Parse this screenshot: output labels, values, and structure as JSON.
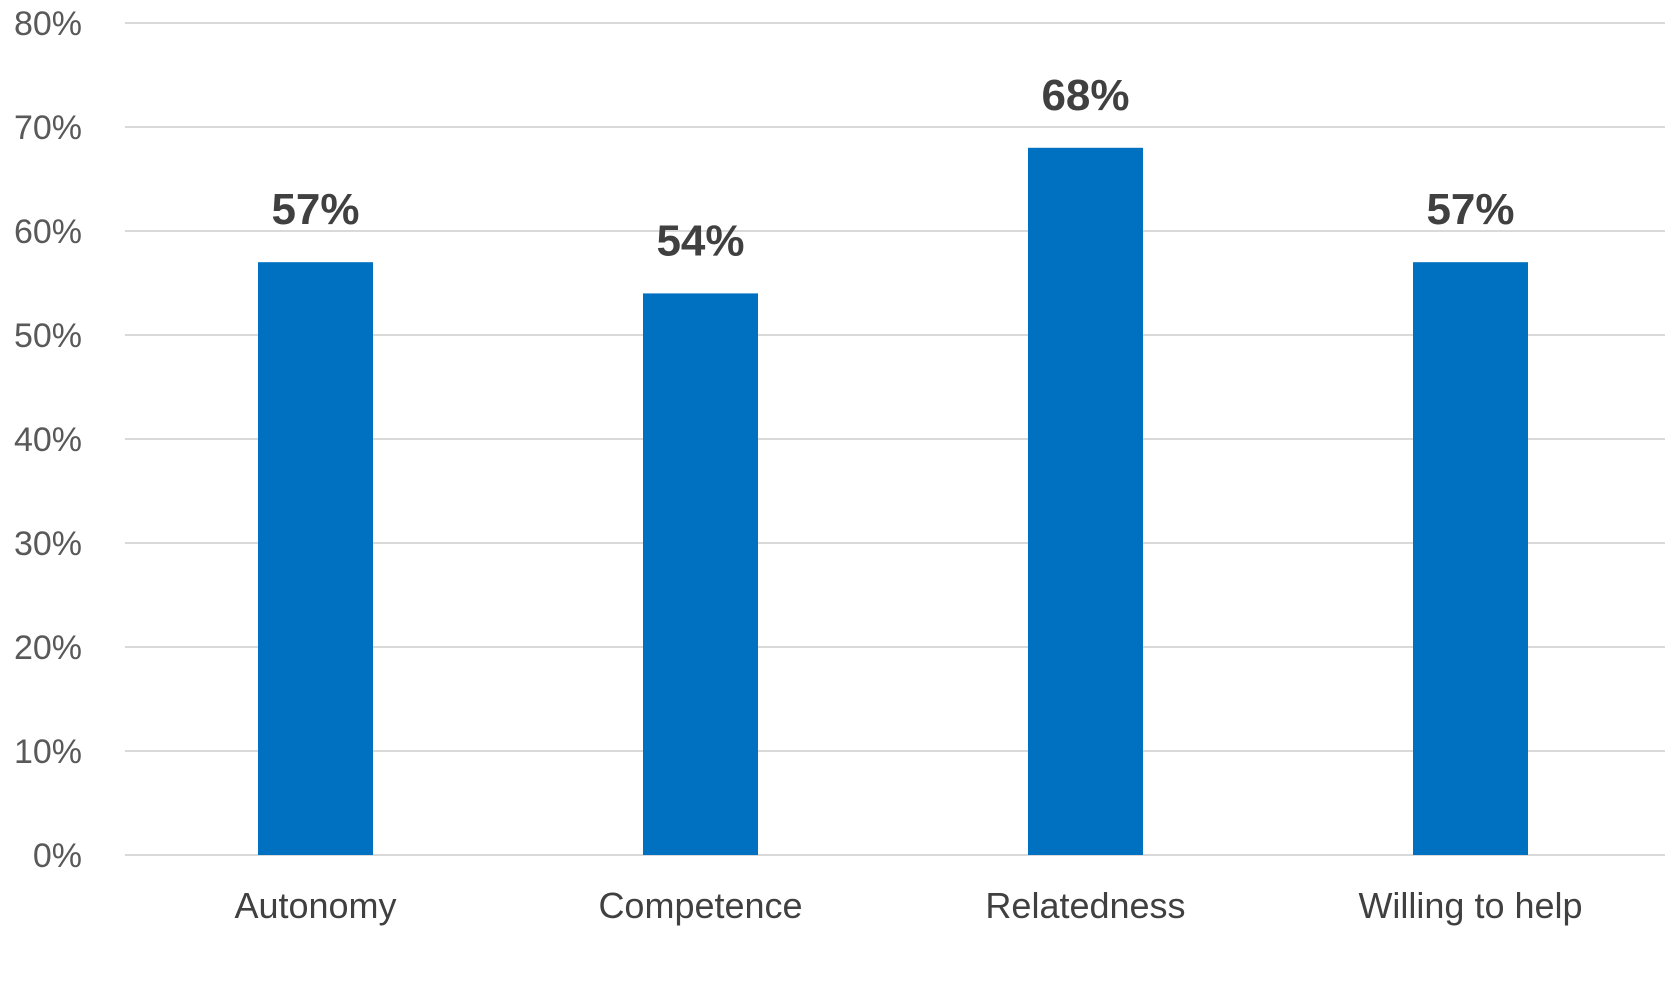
{
  "chart_data": {
    "type": "bar",
    "categories": [
      "Autonomy",
      "Competence",
      "Relatedness",
      "Willing to help"
    ],
    "values": [
      57,
      54,
      68,
      57
    ],
    "data_labels": [
      "57%",
      "54%",
      "68%",
      "57%"
    ],
    "y_ticks": [
      "0%",
      "10%",
      "20%",
      "30%",
      "40%",
      "50%",
      "60%",
      "70%",
      "80%"
    ],
    "ylim": [
      0,
      80
    ],
    "grid": true,
    "legend": "none",
    "bar_color": "#0070C0",
    "gridline_color": "#D9D9D9"
  }
}
